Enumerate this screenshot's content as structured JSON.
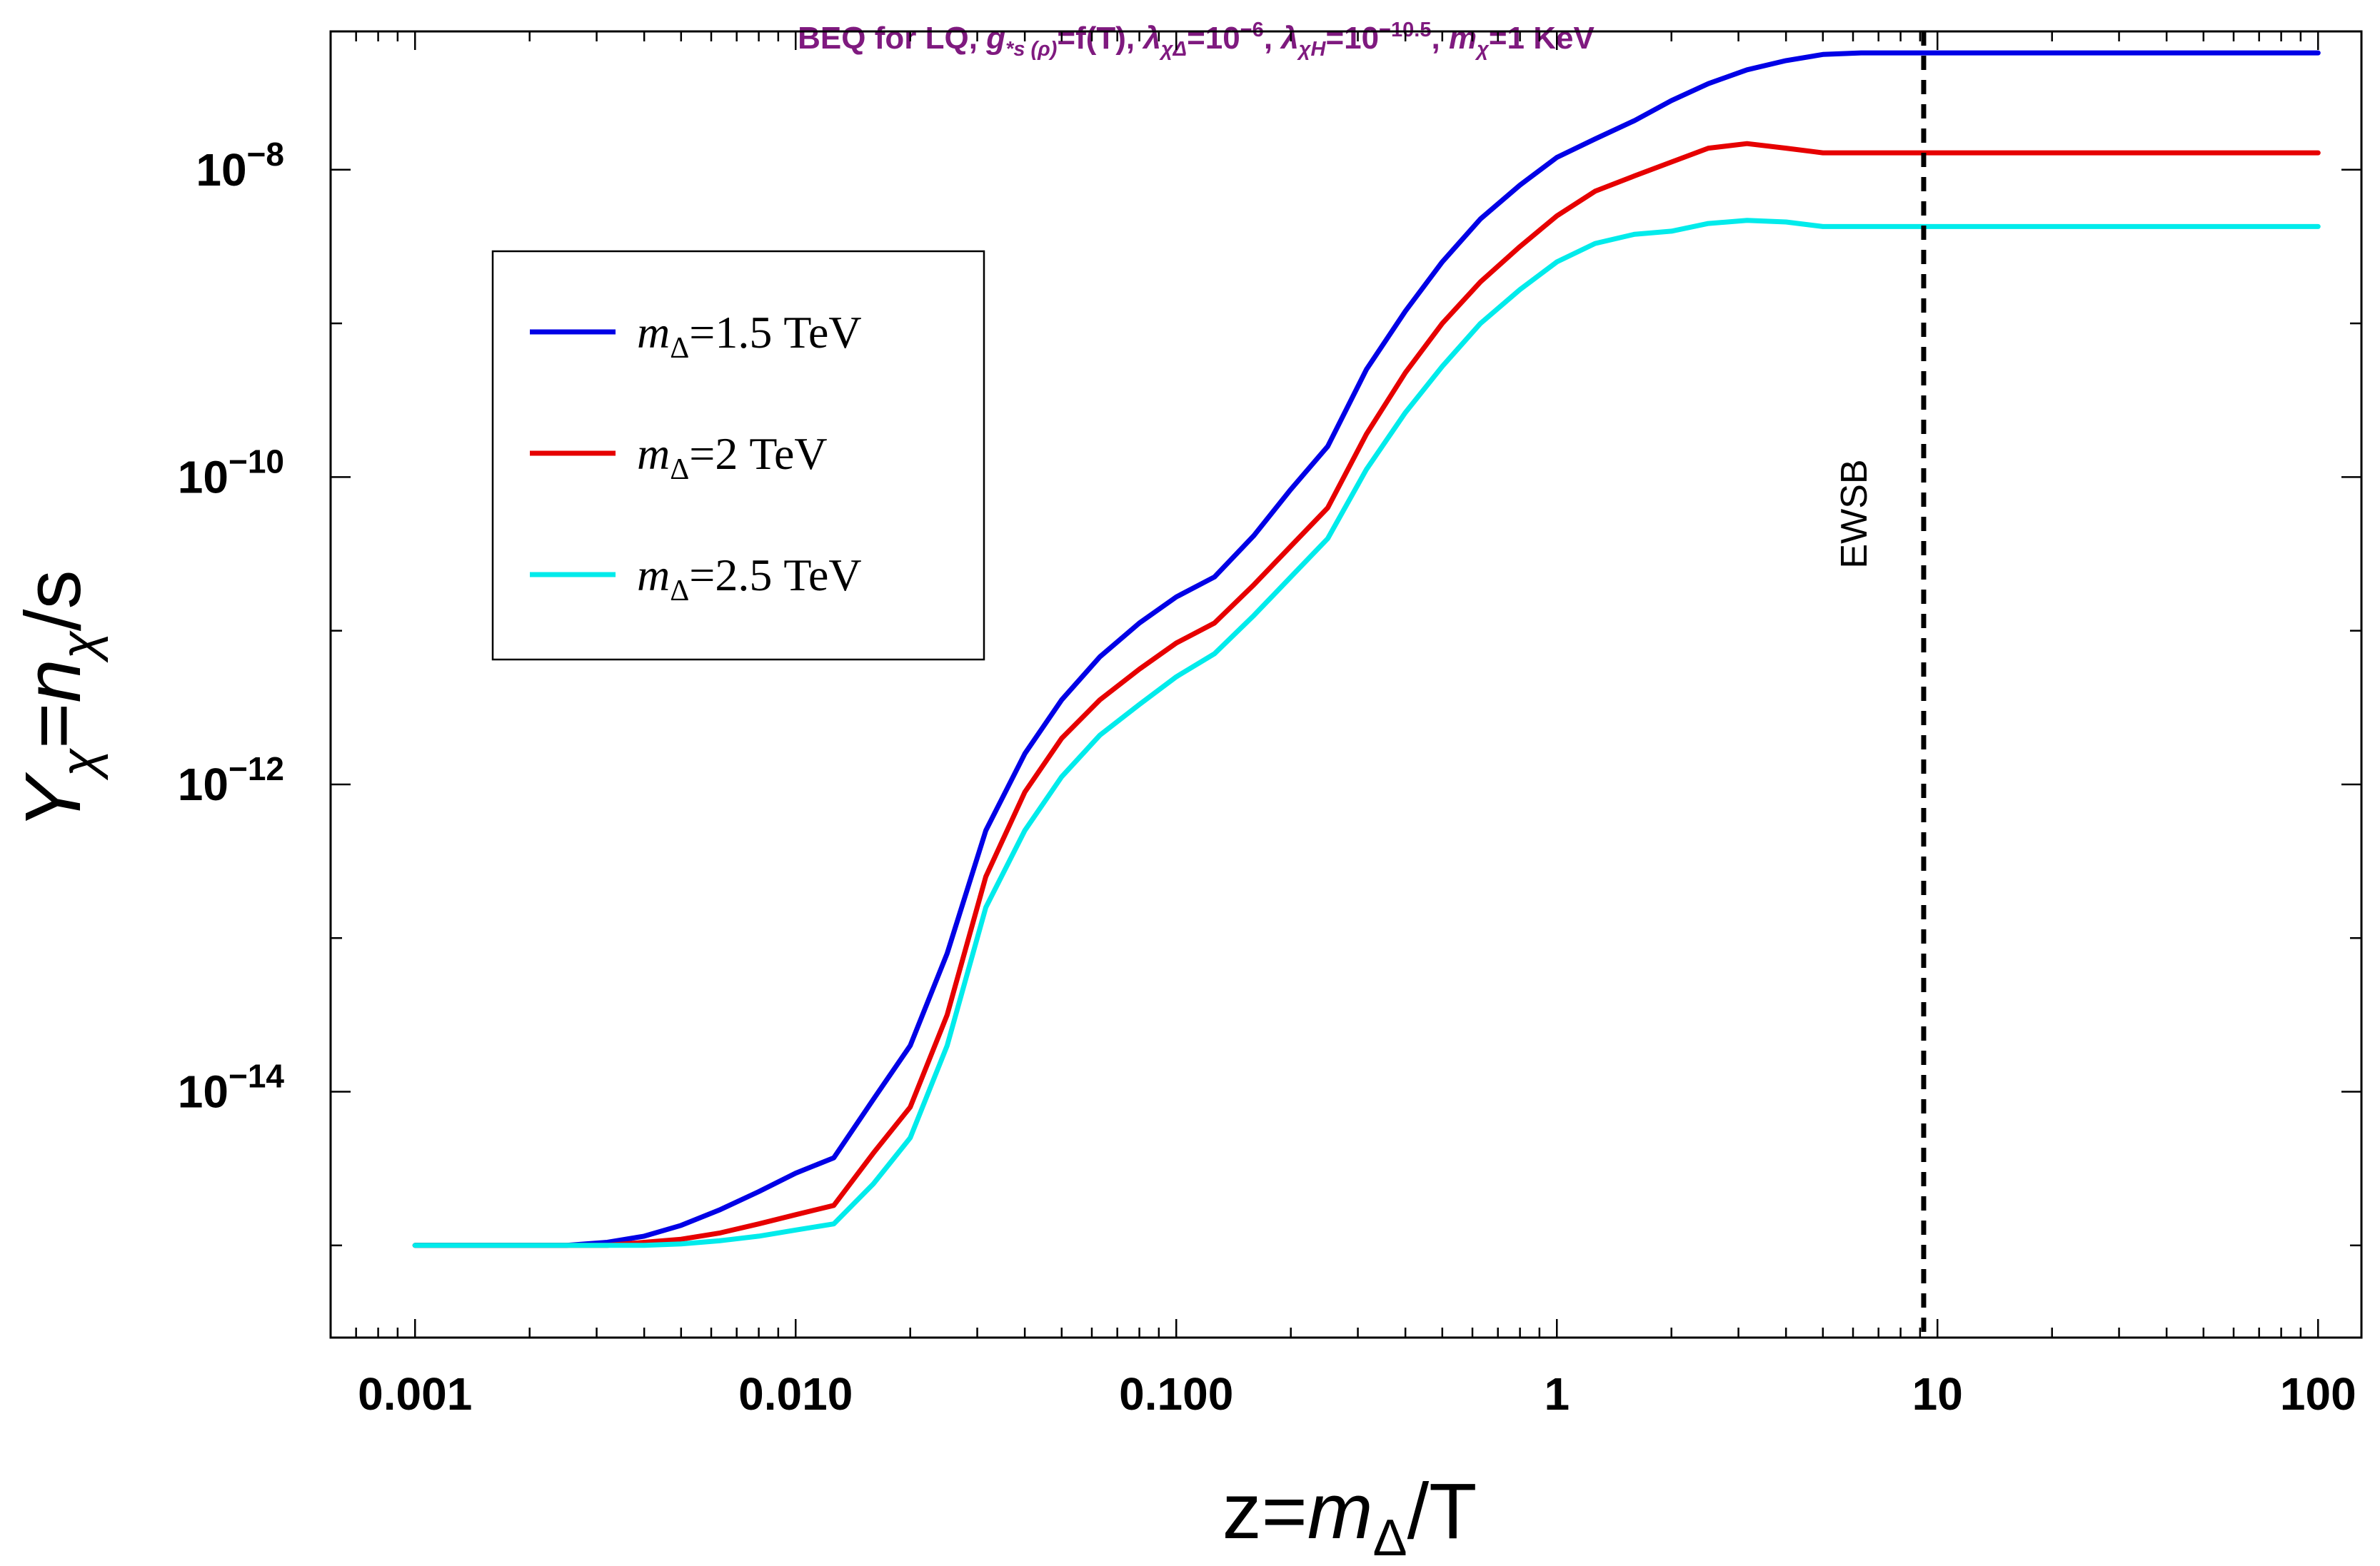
{
  "chart_data": {
    "type": "line",
    "title": {
      "parts": [
        {
          "text": "BEQ for LQ, ",
          "style": "normal"
        },
        {
          "text": "g",
          "style": "italic"
        },
        {
          "text": "*s (ρ)",
          "style": "sub-italic"
        },
        {
          "text": "=f(T), ",
          "style": "normal"
        },
        {
          "text": "λ",
          "style": "italic"
        },
        {
          "text": "χΔ",
          "style": "sub-italic"
        },
        {
          "text": "=10",
          "style": "normal"
        },
        {
          "text": "−6",
          "style": "sup"
        },
        {
          "text": ", ",
          "style": "normal"
        },
        {
          "text": "λ",
          "style": "italic"
        },
        {
          "text": "χH",
          "style": "sub-italic"
        },
        {
          "text": "=10",
          "style": "normal"
        },
        {
          "text": "−10.5",
          "style": "sup"
        },
        {
          "text": ", ",
          "style": "normal"
        },
        {
          "text": "m",
          "style": "italic"
        },
        {
          "text": "χ",
          "style": "sub-italic"
        },
        {
          "text": "=1 KeV",
          "style": "normal"
        }
      ]
    },
    "xlabel": {
      "parts": [
        {
          "text": "z=",
          "style": "normal"
        },
        {
          "text": "m",
          "style": "italic"
        },
        {
          "text": "Δ",
          "style": "sub"
        },
        {
          "text": "/T",
          "style": "normal"
        }
      ]
    },
    "ylabel": {
      "parts": [
        {
          "text": "Y",
          "style": "italic"
        },
        {
          "text": "χ",
          "style": "sub-italic"
        },
        {
          "text": "=",
          "style": "normal"
        },
        {
          "text": "n",
          "style": "italic"
        },
        {
          "text": "χ",
          "style": "sub-italic"
        },
        {
          "text": "/s",
          "style": "normal"
        }
      ]
    },
    "x_scale": "log",
    "y_scale": "log",
    "xlim": [
      0.0006,
      130
    ],
    "ylim_log10": [
      -15.6,
      -7.1
    ],
    "x_ticks": [
      {
        "value": 0.001,
        "label": "0.001"
      },
      {
        "value": 0.01,
        "label": "0.010"
      },
      {
        "value": 0.1,
        "label": "0.100"
      },
      {
        "value": 1,
        "label": "1"
      },
      {
        "value": 10,
        "label": "10"
      },
      {
        "value": 100,
        "label": "100"
      }
    ],
    "y_ticks": [
      {
        "log10": -8,
        "base": "10",
        "exp": "−8"
      },
      {
        "log10": -10,
        "base": "10",
        "exp": "−10"
      },
      {
        "log10": -12,
        "base": "10",
        "exp": "−12"
      },
      {
        "log10": -14,
        "base": "10",
        "exp": "−14"
      }
    ],
    "x": [
      0.001,
      0.00125,
      0.0016,
      0.002,
      0.0025,
      0.0032,
      0.004,
      0.005,
      0.0063,
      0.008,
      0.01,
      0.0126,
      0.016,
      0.02,
      0.025,
      0.0316,
      0.04,
      0.05,
      0.063,
      0.08,
      0.1,
      0.126,
      0.16,
      0.2,
      0.25,
      0.316,
      0.4,
      0.5,
      0.63,
      0.8,
      1,
      1.26,
      1.6,
      2,
      2.5,
      3.16,
      4,
      5,
      6.3,
      8,
      10,
      20,
      50,
      100
    ],
    "series": [
      {
        "name_parts": [
          {
            "text": "m",
            "style": "italic"
          },
          {
            "text": "Δ",
            "style": "sub"
          },
          {
            "text": "=1.5 TeV",
            "style": "normal"
          }
        ],
        "color": "#0000e6",
        "log10_y": [
          -15.0,
          -15.0,
          -15.0,
          -15.0,
          -15.0,
          -14.98,
          -14.94,
          -14.87,
          -14.77,
          -14.65,
          -14.53,
          -14.43,
          -14.05,
          -13.7,
          -13.1,
          -12.3,
          -11.8,
          -11.45,
          -11.17,
          -10.95,
          -10.78,
          -10.65,
          -10.38,
          -10.08,
          -9.8,
          -9.3,
          -8.92,
          -8.6,
          -8.32,
          -8.1,
          -7.92,
          -7.8,
          -7.68,
          -7.55,
          -7.44,
          -7.35,
          -7.29,
          -7.25,
          -7.24,
          -7.24,
          -7.24,
          -7.24,
          -7.24,
          -7.24
        ]
      },
      {
        "name_parts": [
          {
            "text": "m",
            "style": "italic"
          },
          {
            "text": "Δ",
            "style": "sub"
          },
          {
            "text": "=2 TeV",
            "style": "normal"
          }
        ],
        "color": "#e60000",
        "log10_y": [
          -15.0,
          -15.0,
          -15.0,
          -15.0,
          -15.0,
          -15.0,
          -14.98,
          -14.96,
          -14.92,
          -14.86,
          -14.8,
          -14.74,
          -14.4,
          -14.1,
          -13.5,
          -12.6,
          -12.05,
          -11.7,
          -11.45,
          -11.25,
          -11.08,
          -10.95,
          -10.7,
          -10.45,
          -10.2,
          -9.72,
          -9.32,
          -9.0,
          -8.73,
          -8.5,
          -8.3,
          -8.14,
          -8.04,
          -7.95,
          -7.86,
          -7.83,
          -7.86,
          -7.89,
          -7.89,
          -7.89,
          -7.89,
          -7.89,
          -7.89,
          -7.89
        ]
      },
      {
        "name_parts": [
          {
            "text": "m",
            "style": "italic"
          },
          {
            "text": "Δ",
            "style": "sub"
          },
          {
            "text": "=2.5 TeV",
            "style": "normal"
          }
        ],
        "color": "#00ebeb",
        "log10_y": [
          -15.0,
          -15.0,
          -15.0,
          -15.0,
          -15.0,
          -15.0,
          -15.0,
          -14.99,
          -14.97,
          -14.94,
          -14.9,
          -14.86,
          -14.6,
          -14.3,
          -13.7,
          -12.8,
          -12.3,
          -11.95,
          -11.68,
          -11.48,
          -11.3,
          -11.15,
          -10.9,
          -10.65,
          -10.4,
          -9.95,
          -9.58,
          -9.28,
          -9.0,
          -8.78,
          -8.6,
          -8.48,
          -8.42,
          -8.4,
          -8.35,
          -8.33,
          -8.34,
          -8.37,
          -8.37,
          -8.37,
          -8.37,
          -8.37,
          -8.37,
          -8.37
        ]
      }
    ],
    "annotations": [
      {
        "text": "EWSB",
        "x": 9.2,
        "line": "vertical-dashed"
      }
    ],
    "legend_position": "upper-left",
    "grid": false
  }
}
